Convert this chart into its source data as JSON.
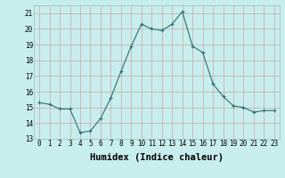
{
  "xlabel": "Humidex (Indice chaleur)",
  "x": [
    0,
    1,
    2,
    3,
    4,
    5,
    6,
    7,
    8,
    9,
    10,
    11,
    12,
    13,
    14,
    15,
    16,
    17,
    18,
    19,
    20,
    21,
    22,
    23
  ],
  "y": [
    15.3,
    15.2,
    14.9,
    14.9,
    13.4,
    13.5,
    14.3,
    15.6,
    17.3,
    18.9,
    20.3,
    20.0,
    19.9,
    20.3,
    21.1,
    18.9,
    18.5,
    16.5,
    15.7,
    15.1,
    15.0,
    14.7,
    14.8,
    14.8
  ],
  "ylim": [
    13,
    21.5
  ],
  "yticks": [
    13,
    14,
    15,
    16,
    17,
    18,
    19,
    20,
    21
  ],
  "xtick_labels": [
    "0",
    "1",
    "2",
    "3",
    "4",
    "5",
    "6",
    "7",
    "8",
    "9",
    "10",
    "11",
    "12",
    "13",
    "14",
    "15",
    "16",
    "17",
    "18",
    "19",
    "20",
    "21",
    "22",
    "23"
  ],
  "line_color": "#2d6e6e",
  "marker": "+",
  "bg_color": "#c8eded",
  "grid_color": "#b0d0d0",
  "tick_label_fontsize": 5.5,
  "xlabel_fontsize": 7.5,
  "grid_major_color": "#d0b0b0",
  "grid_minor_color": "#c8dede"
}
